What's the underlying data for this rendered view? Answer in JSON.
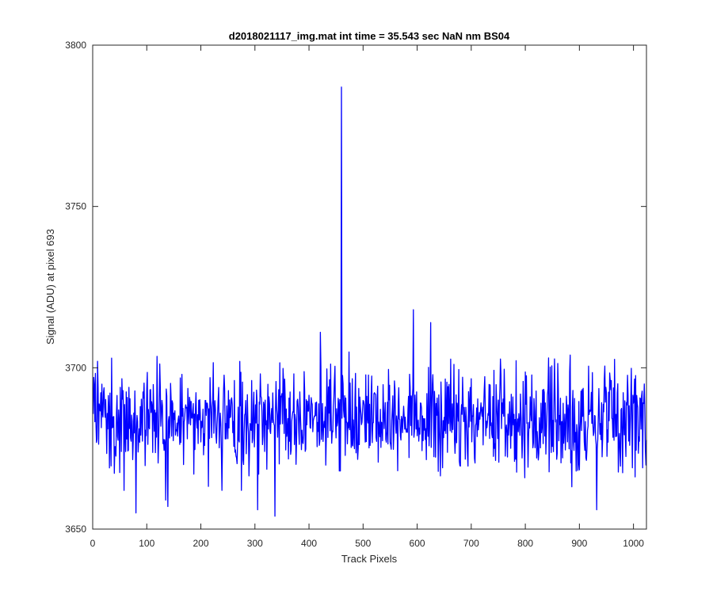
{
  "chart_data": {
    "type": "line",
    "title": "d2018021117_img.mat int time = 35.543 sec  NaN nm BS04",
    "xlabel": "Track Pixels",
    "ylabel": "Signal (ADU) at pixel 693",
    "xlim": [
      0,
      1024
    ],
    "ylim": [
      3650,
      3800
    ],
    "xticks": [
      0,
      100,
      200,
      300,
      400,
      500,
      600,
      700,
      800,
      900,
      1000
    ],
    "yticks": [
      3650,
      3700,
      3750,
      3800
    ],
    "grid": false,
    "legend": "none",
    "line_color": "#0000ff",
    "noise_model": {
      "n_points": 1024,
      "x_start": 1,
      "mean": 3684,
      "spread": 8,
      "seed": 2018021117
    },
    "series": [
      {
        "x_start": 1,
        "x_step": 1,
        "values_notable": [
          {
            "x": 2,
            "y": 3697
          },
          {
            "x": 9,
            "y": 3702
          },
          {
            "x": 35,
            "y": 3703
          },
          {
            "x": 80,
            "y": 3655
          },
          {
            "x": 135,
            "y": 3659
          },
          {
            "x": 139,
            "y": 3657
          },
          {
            "x": 305,
            "y": 3656
          },
          {
            "x": 337,
            "y": 3654
          },
          {
            "x": 421,
            "y": 3711
          },
          {
            "x": 458,
            "y": 3668
          },
          {
            "x": 460,
            "y": 3787
          },
          {
            "x": 593,
            "y": 3718
          },
          {
            "x": 625,
            "y": 3714
          },
          {
            "x": 932,
            "y": 3656
          },
          {
            "x": 1017,
            "y": 3669
          }
        ]
      }
    ]
  }
}
